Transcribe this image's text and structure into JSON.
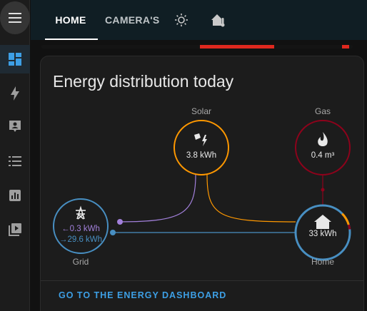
{
  "tabs": [
    {
      "label": "HOME",
      "active": true
    },
    {
      "label": "CAMERA'S",
      "active": false
    }
  ],
  "tab_icons": [
    "weather-sunny-icon",
    "home-thermometer-icon"
  ],
  "sidebar": {
    "items": [
      "dashboard-icon",
      "lightning-icon",
      "account-box-icon",
      "list-icon",
      "chart-icon",
      "media-play-icon"
    ]
  },
  "card": {
    "title": "Energy distribution today",
    "link_label": "GO TO THE ENERGY DASHBOARD"
  },
  "nodes": {
    "solar": {
      "label": "Solar",
      "value": "3.8 kWh",
      "color": "#ff9800"
    },
    "gas": {
      "label": "Gas",
      "value": "0.4 m³",
      "color": "#8e021b"
    },
    "grid": {
      "label": "Grid",
      "return_value": "0.3 kWh",
      "consumption_value": "29.6 kWh",
      "color": "#488fc2",
      "return_color": "#a280db"
    },
    "home": {
      "label": "Home",
      "value": "33 kWh",
      "color": "#488fc2"
    }
  },
  "colors": {
    "accent": "#3d9fe5",
    "background": "#111111",
    "card": "#1c1c1c"
  }
}
